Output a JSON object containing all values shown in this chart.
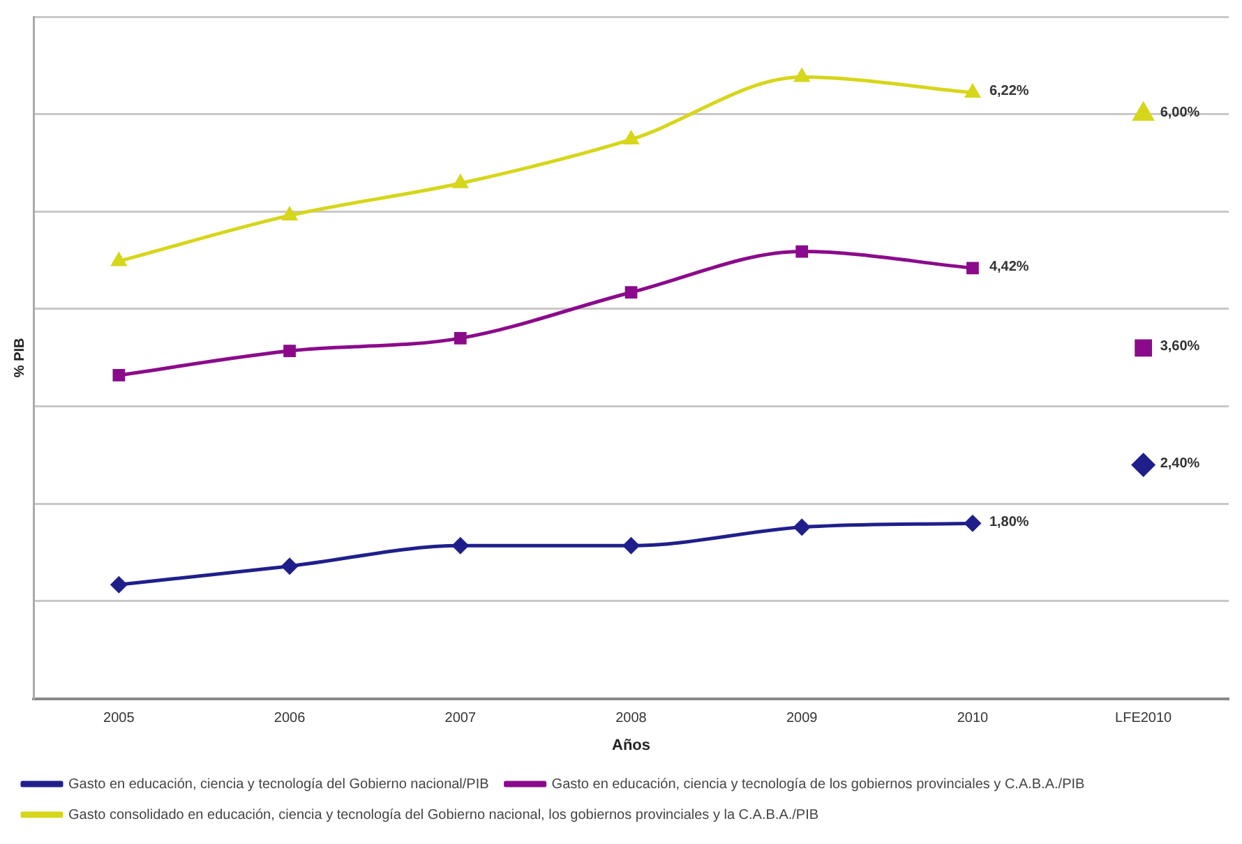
{
  "chart_data": {
    "type": "line",
    "xlabel": "Años",
    "ylabel": "% PIB",
    "categories": [
      "2005",
      "2006",
      "2007",
      "2008",
      "2009",
      "2010",
      "LFE2010"
    ],
    "ylim": [
      0,
      7
    ],
    "yticks": [
      {
        "value": 0,
        "label": null
      },
      {
        "value": 1,
        "label": null
      },
      {
        "value": 2,
        "label": null
      },
      {
        "value": 3,
        "label": null
      },
      {
        "value": 4,
        "label": null
      },
      {
        "value": 5,
        "label": null
      },
      {
        "value": 6,
        "label": null
      },
      {
        "value": 7,
        "label": null
      }
    ],
    "tick_labels": "x",
    "grid": "y",
    "legend": "bottom",
    "line_style": "solid",
    "series": [
      {
        "name": "Gasto en educación, ciencia y tecnología del Gobierno nacional/PIB",
        "color": "#1f1f8c",
        "marker": "diamond",
        "values": [
          1.17,
          1.36,
          1.57,
          1.57,
          1.76,
          1.8,
          null
        ],
        "value_labels": [
          null,
          null,
          null,
          null,
          null,
          "1,80%",
          null
        ]
      },
      {
        "name": "Gasto en educación, ciencia y tecnología de los gobiernos provinciales y C.A.B.A./PIB",
        "color": "#8b0a8b",
        "marker": "square",
        "values": [
          3.32,
          3.57,
          3.7,
          4.17,
          4.59,
          4.42,
          null
        ],
        "value_labels": [
          null,
          null,
          null,
          null,
          null,
          "4,42%",
          null
        ]
      },
      {
        "name": "Gasto consolidado en educación, ciencia y tecnología del Gobierno nacional, los gobiernos provinciales y la C.A.B.A./PIB",
        "color": "#d6d61a",
        "marker": "triangle",
        "values": [
          4.49,
          4.96,
          5.29,
          5.74,
          6.38,
          6.22,
          null
        ],
        "value_labels": [
          null,
          null,
          null,
          null,
          null,
          "6,22%",
          null
        ]
      },
      {
        "type": "scatter",
        "color": "#1f1f8c",
        "marker": "diamond",
        "values": [
          null,
          null,
          null,
          null,
          null,
          null,
          2.4
        ],
        "value_labels": [
          null,
          null,
          null,
          null,
          null,
          null,
          "2,40%"
        ]
      },
      {
        "type": "scatter",
        "color": "#8b0a8b",
        "marker": "square",
        "values": [
          null,
          null,
          null,
          null,
          null,
          null,
          3.6
        ],
        "value_labels": [
          null,
          null,
          null,
          null,
          null,
          null,
          "3,60%"
        ]
      },
      {
        "type": "scatter",
        "color": "#d6d61a",
        "marker": "triangle",
        "values": [
          null,
          null,
          null,
          null,
          null,
          null,
          6.0
        ],
        "value_labels": [
          null,
          null,
          null,
          null,
          null,
          null,
          "6,00%"
        ]
      }
    ]
  }
}
